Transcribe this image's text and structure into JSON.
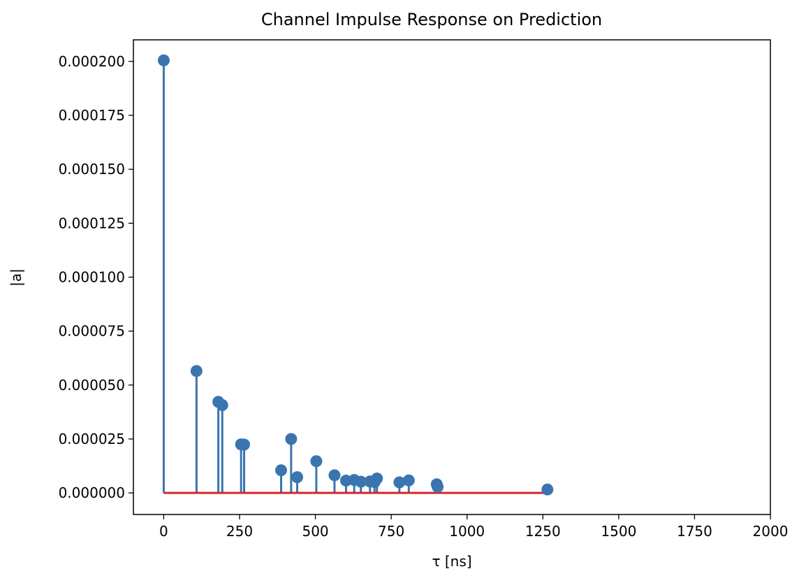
{
  "chart_data": {
    "type": "stem",
    "title": "Channel Impulse Response on Prediction",
    "xlabel": "τ [ns]",
    "ylabel": "|a|",
    "xlim": [
      -100,
      2000
    ],
    "ylim": [
      -1e-05,
      0.00021
    ],
    "xticks": [
      0,
      250,
      500,
      750,
      1000,
      1250,
      1500,
      1750,
      2000
    ],
    "xtick_labels": [
      "0",
      "250",
      "500",
      "750",
      "1000",
      "1250",
      "1500",
      "1750",
      "2000"
    ],
    "yticks": [
      0,
      2.5e-05,
      5e-05,
      7.5e-05,
      0.0001,
      0.000125,
      0.00015,
      0.000175,
      0.0002
    ],
    "ytick_labels": [
      "0.000000",
      "0.000025",
      "0.000050",
      "0.000075",
      "0.000100",
      "0.000125",
      "0.000150",
      "0.000175",
      "0.000200"
    ],
    "grid": false,
    "stem_color": "#3b75af",
    "baseline_color": "#d62728",
    "points": [
      {
        "x": 0,
        "y": 0.0002005
      },
      {
        "x": 108,
        "y": 5.65e-05
      },
      {
        "x": 180,
        "y": 4.22e-05
      },
      {
        "x": 193,
        "y": 4.07e-05
      },
      {
        "x": 255,
        "y": 2.25e-05
      },
      {
        "x": 265,
        "y": 2.24e-05
      },
      {
        "x": 387,
        "y": 1.05e-05
      },
      {
        "x": 420,
        "y": 2.5e-05
      },
      {
        "x": 440,
        "y": 7.3e-06
      },
      {
        "x": 503,
        "y": 1.47e-05
      },
      {
        "x": 563,
        "y": 8.2e-06
      },
      {
        "x": 601,
        "y": 5.7e-06
      },
      {
        "x": 628,
        "y": 6e-06
      },
      {
        "x": 650,
        "y": 5.2e-06
      },
      {
        "x": 680,
        "y": 5.3e-06
      },
      {
        "x": 695,
        "y": 5e-06
      },
      {
        "x": 703,
        "y": 6.7e-06
      },
      {
        "x": 777,
        "y": 4.9e-06
      },
      {
        "x": 808,
        "y": 5.8e-06
      },
      {
        "x": 900,
        "y": 4e-06
      },
      {
        "x": 903,
        "y": 2.8e-06
      },
      {
        "x": 1265,
        "y": 1.6e-06
      }
    ],
    "baseline_x": [
      0,
      1265
    ]
  }
}
